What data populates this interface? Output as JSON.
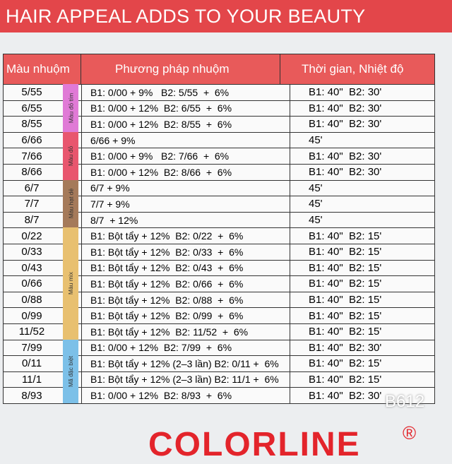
{
  "banner": "HAIR APPEAL ADDS TO YOUR BEAUTY",
  "headers": {
    "color": "Màu nhuộm",
    "method": "Phương pháp nhuộm",
    "time": "Thời gian, Nhiệt độ"
  },
  "categories": [
    {
      "label": "Màu đỏ tím",
      "color": "#e07ad6",
      "rows": 3
    },
    {
      "label": "Màu đỏ",
      "color": "#e8566e",
      "rows": 3
    },
    {
      "label": "Màu hạt dẻ",
      "color": "#a57a5a",
      "rows": 3
    },
    {
      "label": "Màu mix",
      "color": "#e8c070",
      "rows": 7
    },
    {
      "label": "Mã đặc biệt",
      "color": "#7cc0e8",
      "rows": 4
    }
  ],
  "rows": [
    {
      "color": "5/55",
      "method": "B1: 0/00 + 9%   B2: 5/55  +  6%",
      "time": "B1: 40\"  B2: 30'"
    },
    {
      "color": "6/55",
      "method": "B1: 0/00 + 12%  B2: 6/55  +  6%",
      "time": "B1: 40\"  B2: 30'"
    },
    {
      "color": "8/55",
      "method": "B1: 0/00 + 12%  B2: 8/55  +  6%",
      "time": "B1: 40\"  B2: 30'"
    },
    {
      "color": "6/66",
      "method": "6/66 + 9%",
      "time": "45'"
    },
    {
      "color": "7/66",
      "method": "B1: 0/00 + 9%   B2: 7/66  +  6%",
      "time": "B1: 40\"  B2: 30'"
    },
    {
      "color": "8/66",
      "method": "B1: 0/00 + 12%  B2: 8/66  +  6%",
      "time": "B1: 40\"  B2: 30'"
    },
    {
      "color": "6/7",
      "method": "6/7 + 9%",
      "time": "45'"
    },
    {
      "color": "7/7",
      "method": "7/7 + 9%",
      "time": "45'"
    },
    {
      "color": "8/7",
      "method": "8/7  + 12%",
      "time": "45'"
    },
    {
      "color": "0/22",
      "method": "B1: Bột tẩy + 12%  B2: 0/22  +  6%",
      "time": "B1: 40\"  B2: 15'"
    },
    {
      "color": "0/33",
      "method": "B1: Bột tẩy + 12%  B2: 0/33  +  6%",
      "time": "B1: 40\"  B2: 15'"
    },
    {
      "color": "0/43",
      "method": "B1: Bột tẩy + 12%  B2: 0/43  +  6%",
      "time": "B1: 40\"  B2: 15'"
    },
    {
      "color": "0/66",
      "method": "B1: Bột tẩy + 12%  B2: 0/66  +  6%",
      "time": "B1: 40\"  B2: 15'"
    },
    {
      "color": "0/88",
      "method": "B1: Bột tẩy + 12%  B2: 0/88  +  6%",
      "time": "B1: 40\"  B2: 15'"
    },
    {
      "color": "0/99",
      "method": "B1: Bột tẩy + 12%  B2: 0/99  +  6%",
      "time": "B1: 40\"  B2: 15'"
    },
    {
      "color": "11/52",
      "method": "B1: Bột tẩy + 12%  B2: 11/52  +  6%",
      "time": "B1: 40\"  B2: 15'"
    },
    {
      "color": "7/99",
      "method": "B1: 0/00 + 12%  B2: 7/99  +  6%",
      "time": "B1: 40\"  B2: 30'"
    },
    {
      "color": "0/11",
      "method": "B1: Bột tẩy + 12% (2–3 lần) B2: 0/11 +  6%",
      "time": "B1: 40\"  B2: 15'"
    },
    {
      "color": "11/1",
      "method": "B1: Bột tẩy + 12% (2–3 lần) B2: 11/1 +  6%",
      "time": "B1: 40\"  B2: 15'"
    },
    {
      "color": "8/93",
      "method": "B1: 0/00 + 12%  B2: 8/93  +  6%",
      "time": "B1: 40\"  B2: 30'"
    }
  ],
  "logo": "COLORLINE",
  "registered": "®",
  "watermark": "B612"
}
